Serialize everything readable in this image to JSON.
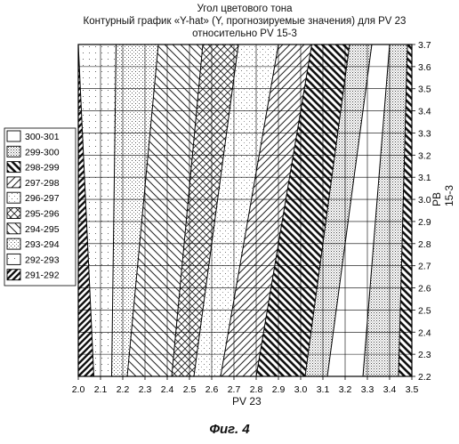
{
  "title": {
    "line1": "Угол цветового тона",
    "line2": "Контурный график «Y-hat» (Y, прогнозируемые значения) для PV 23",
    "line3": "относительно PV 15-3"
  },
  "figure_caption": "Фиг. 4",
  "chart_data": {
    "type": "contour",
    "title": "Угол цветового тона",
    "subtitle": "Контурный график «Y-hat» (Y, прогнозируемые значения) для PV 23 относительно PV 15-3",
    "xlabel": "PV 23",
    "ylabel": "PB 15-3",
    "xlim": [
      2.0,
      3.5
    ],
    "ylim": [
      2.2,
      3.7
    ],
    "x_ticks": [
      "2.0",
      "2.1",
      "2.2",
      "2.3",
      "2.4",
      "2.5",
      "2.6",
      "2.7",
      "2.8",
      "2.9",
      "3.0",
      "3.1",
      "3.2",
      "3.3",
      "3.4",
      "3.5"
    ],
    "y_ticks": [
      "2.2",
      "2.3",
      "2.4",
      "2.5",
      "2.6",
      "2.7",
      "2.8",
      "2.9",
      "3.0",
      "3.1",
      "3.2",
      "3.3",
      "3.4",
      "3.5",
      "3.6",
      "3.7"
    ],
    "grid": true,
    "legend_position": "left",
    "legend": [
      {
        "label": "300-301",
        "pattern": "blank"
      },
      {
        "label": "299-300",
        "pattern": "dense-dots"
      },
      {
        "label": "298-299",
        "pattern": "thick-backslash"
      },
      {
        "label": "297-298",
        "pattern": "forward-slash"
      },
      {
        "label": "296-297",
        "pattern": "light-dots"
      },
      {
        "label": "295-296",
        "pattern": "crosshatch"
      },
      {
        "label": "294-295",
        "pattern": "backslash"
      },
      {
        "label": "293-294",
        "pattern": "dots-grid"
      },
      {
        "label": "292-293",
        "pattern": "sparse-dots"
      },
      {
        "label": "291-292",
        "pattern": "thick-slash"
      }
    ],
    "contour_lines": [
      {
        "x_at_bottom": 2.07,
        "x_at_top": 2.0
      },
      {
        "x_at_bottom": 2.15,
        "x_at_top": 2.17
      },
      {
        "x_at_bottom": 2.22,
        "x_at_top": 2.36
      },
      {
        "x_at_bottom": 2.42,
        "x_at_top": 2.56
      },
      {
        "x_at_bottom": 2.52,
        "x_at_top": 2.72
      },
      {
        "x_at_bottom": 2.64,
        "x_at_top": 2.9
      },
      {
        "x_at_bottom": 2.8,
        "x_at_top": 3.05
      },
      {
        "x_at_bottom": 3.02,
        "x_at_top": 3.22
      },
      {
        "x_at_bottom": 3.12,
        "x_at_top": 3.32
      },
      {
        "x_at_bottom": 3.28,
        "x_at_top": 3.4
      },
      {
        "x_at_bottom": 3.44,
        "x_at_top": 3.48
      }
    ],
    "bands": [
      {
        "level": "291-292"
      },
      {
        "level": "292-293"
      },
      {
        "level": "293-294"
      },
      {
        "level": "294-295"
      },
      {
        "level": "295-296"
      },
      {
        "level": "296-297"
      },
      {
        "level": "297-298"
      },
      {
        "level": "298-299"
      },
      {
        "level": "299-300"
      },
      {
        "level": "300-301"
      },
      {
        "level": "299-300"
      },
      {
        "level": "298-299"
      }
    ]
  }
}
